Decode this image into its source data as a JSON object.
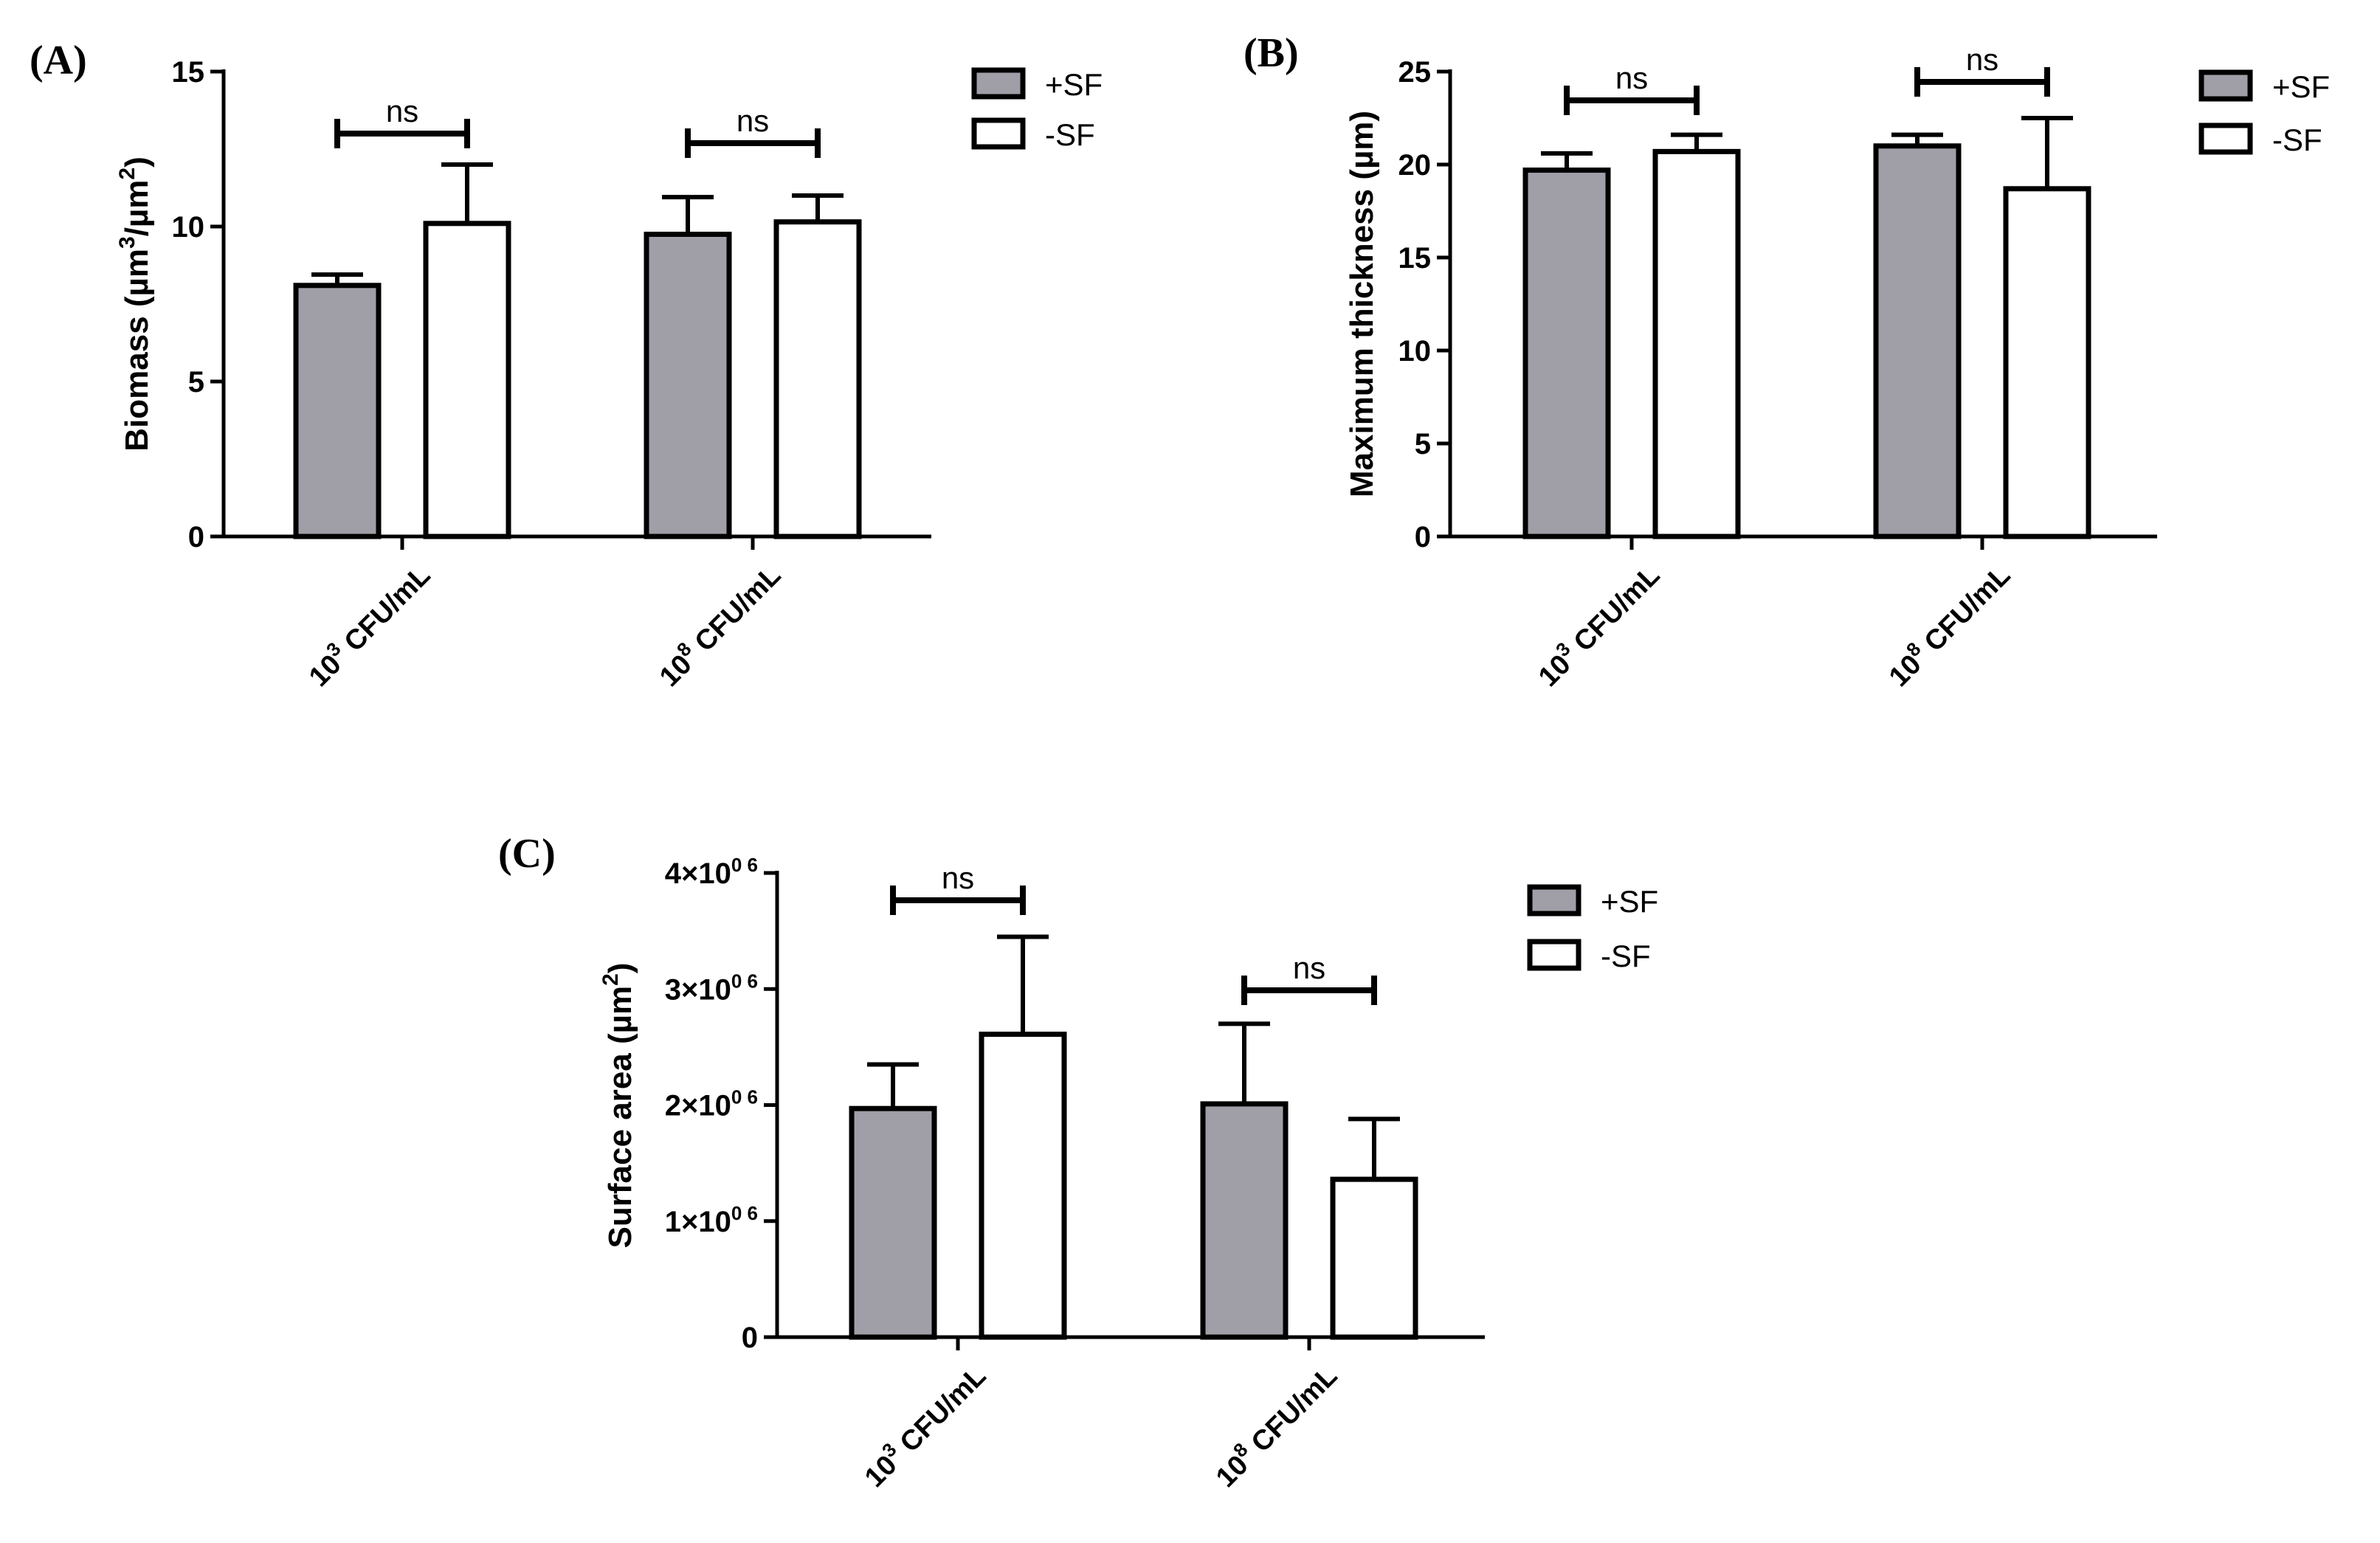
{
  "colors": {
    "plus_sf": "#a09ea6",
    "minus_sf": "#ffffff"
  },
  "chart_data": [
    {
      "panel": "(A)",
      "type": "bar",
      "ylabel_main": "Biomass (µm",
      "ylabel_sup1": "3",
      "ylabel_mid": "/µm",
      "ylabel_sup2": "2",
      "ylabel_end": ")",
      "ylim": [
        0,
        15
      ],
      "yticks": [
        "0",
        "5",
        "10",
        "15"
      ],
      "categories": [
        {
          "base": "10",
          "sup": "3",
          "rest": " CFU/mL"
        },
        {
          "base": "10",
          "sup": "8",
          "rest": " CFU/mL"
        }
      ],
      "series": [
        {
          "name": "+SF",
          "values": [
            8.1,
            9.75
          ],
          "errors": [
            0.35,
            1.2
          ]
        },
        {
          "name": "-SF",
          "values": [
            10.1,
            10.15
          ],
          "errors": [
            1.9,
            0.85
          ]
        }
      ],
      "significance": [
        "ns",
        "ns"
      ],
      "legend": [
        "+SF",
        "-SF"
      ]
    },
    {
      "panel": "(B)",
      "type": "bar",
      "ylabel_main": "Maximum thickness (µm)",
      "ylim": [
        0,
        25
      ],
      "yticks": [
        "0",
        "5",
        "10",
        "15",
        "20",
        "25"
      ],
      "categories": [
        {
          "base": "10",
          "sup": "3",
          "rest": " CFU/mL"
        },
        {
          "base": "10",
          "sup": "8",
          "rest": " CFU/mL"
        }
      ],
      "series": [
        {
          "name": "+SF",
          "values": [
            19.7,
            21.0
          ],
          "errors": [
            0.9,
            0.6
          ]
        },
        {
          "name": "-SF",
          "values": [
            20.7,
            18.7
          ],
          "errors": [
            0.9,
            3.8
          ]
        }
      ],
      "significance": [
        "ns",
        "ns"
      ],
      "legend": [
        "+SF",
        "-SF"
      ]
    },
    {
      "panel": "(C)",
      "type": "bar",
      "ylabel_main": "Surface area (µm",
      "ylabel_sup1": "2",
      "ylabel_end": ")",
      "ylim": [
        0,
        4000000
      ],
      "yticks": [
        {
          "base": "0",
          "sup": ""
        },
        {
          "base": "1×10",
          "sup": "0 6"
        },
        {
          "base": "2×10",
          "sup": "0 6"
        },
        {
          "base": "3×10",
          "sup": "0 6"
        },
        {
          "base": "4×10",
          "sup": "0 6"
        }
      ],
      "categories": [
        {
          "base": "10",
          "sup": "3",
          "rest": " CFU/mL"
        },
        {
          "base": "10",
          "sup": "8",
          "rest": " CFU/mL"
        }
      ],
      "series": [
        {
          "name": "+SF",
          "values": [
            1970000,
            2010000
          ],
          "errors": [
            380000,
            690000
          ]
        },
        {
          "name": "-SF",
          "values": [
            2610000,
            1360000
          ],
          "errors": [
            840000,
            520000
          ]
        }
      ],
      "significance": [
        "ns",
        "ns"
      ],
      "legend": [
        "+SF",
        "-SF"
      ]
    }
  ]
}
